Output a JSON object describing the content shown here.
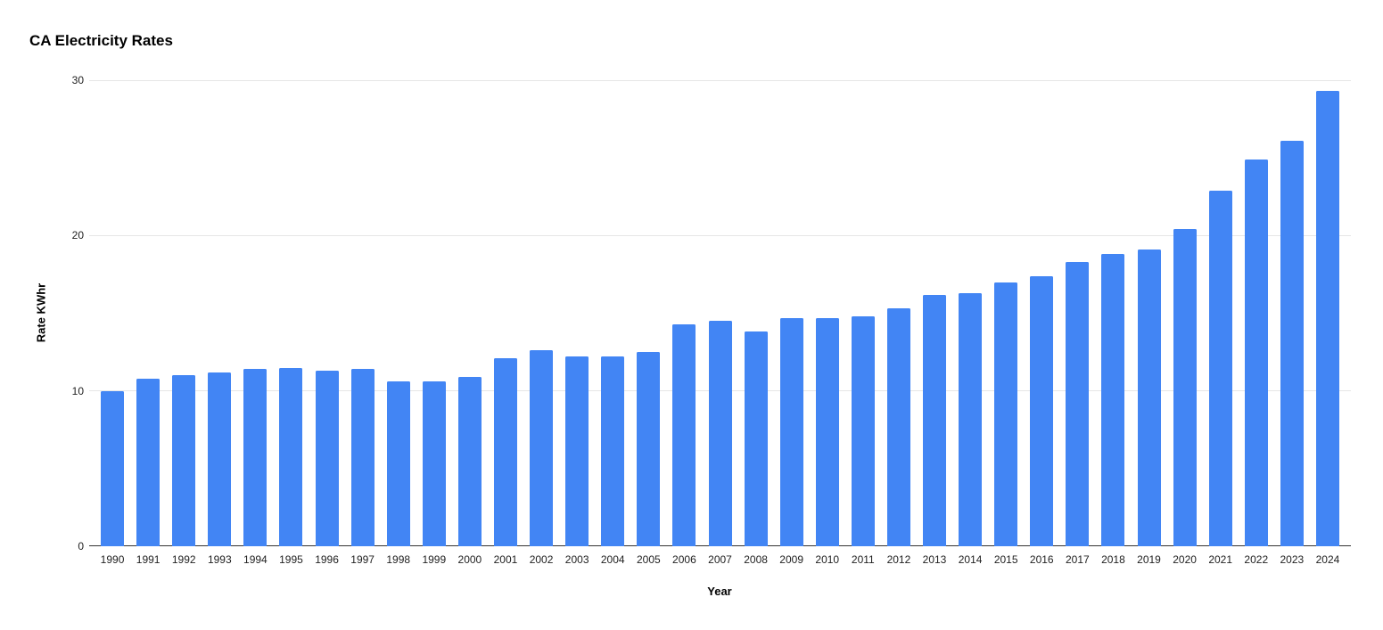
{
  "chart_data": {
    "type": "bar",
    "title": "CA Electricity Rates",
    "xlabel": "Year",
    "ylabel": "Rate KWhr",
    "categories": [
      "1990",
      "1991",
      "1992",
      "1993",
      "1994",
      "1995",
      "1996",
      "1997",
      "1998",
      "1999",
      "2000",
      "2001",
      "2002",
      "2003",
      "2004",
      "2005",
      "2006",
      "2007",
      "2008",
      "2009",
      "2010",
      "2011",
      "2012",
      "2013",
      "2014",
      "2015",
      "2016",
      "2017",
      "2018",
      "2019",
      "2020",
      "2021",
      "2022",
      "2023",
      "2024"
    ],
    "values": [
      10.0,
      10.8,
      11.0,
      11.2,
      11.4,
      11.5,
      11.3,
      11.4,
      10.6,
      10.6,
      10.9,
      12.1,
      12.6,
      12.2,
      12.2,
      12.5,
      14.3,
      14.5,
      13.8,
      14.7,
      14.7,
      14.8,
      15.3,
      16.2,
      16.3,
      17.0,
      17.4,
      18.3,
      18.8,
      19.1,
      20.4,
      22.9,
      24.9,
      26.1,
      29.3
    ],
    "ylim": [
      0,
      30
    ],
    "yticks": [
      0,
      10,
      20,
      30
    ],
    "grid": true,
    "legend": "none",
    "colors": {
      "bar": "#4285f4",
      "gridline": "#e6e6e6",
      "axis_line": "#333333",
      "tick_label": "#222222",
      "title": "#000000",
      "background": "#ffffff"
    }
  }
}
